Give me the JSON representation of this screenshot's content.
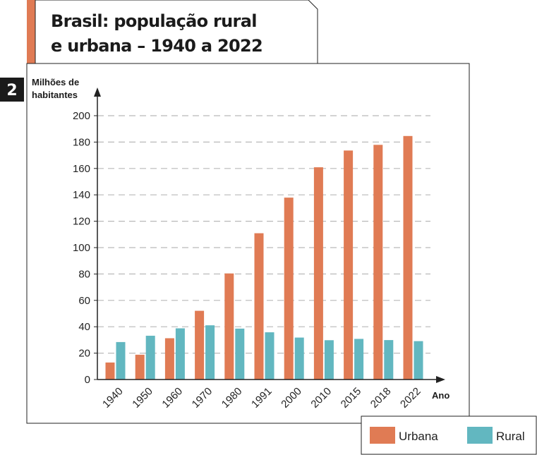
{
  "badge": "2",
  "title": {
    "line1": "Brasil: população rural",
    "line2": "e urbana – 1940 a 2022"
  },
  "chart_data": {
    "type": "bar",
    "ylabel_line1": "Milhões de",
    "ylabel_line2": "habitantes",
    "xlabel": "Ano",
    "categories": [
      "1940",
      "1950",
      "1960",
      "1970",
      "1980",
      "1991",
      "2000",
      "2010",
      "2015",
      "2018",
      "2022"
    ],
    "series": [
      {
        "name": "Urbana",
        "color": "#E07B54",
        "values": [
          12.9,
          18.8,
          31.3,
          52.1,
          80.4,
          110.9,
          137.9,
          160.9,
          173.6,
          177.9,
          184.6
        ]
      },
      {
        "name": "Rural",
        "color": "#62B7C0",
        "values": [
          28.4,
          33.2,
          38.8,
          41.1,
          38.6,
          35.8,
          31.8,
          29.8,
          30.8,
          29.9,
          29.1
        ]
      }
    ],
    "yticks": [
      0,
      20,
      40,
      60,
      80,
      100,
      120,
      140,
      160,
      180,
      200
    ],
    "ylim": [
      0,
      200
    ],
    "grid": true,
    "legend_position": "bottom-right"
  }
}
